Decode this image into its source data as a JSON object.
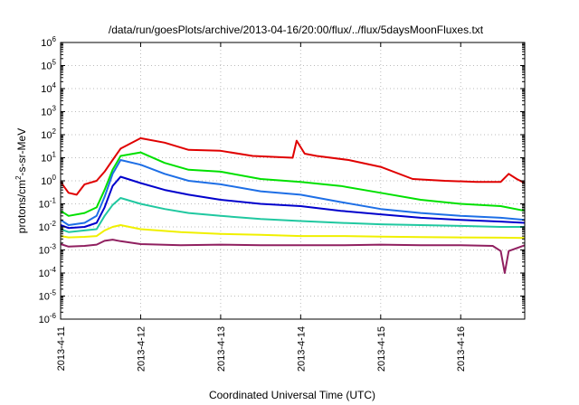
{
  "chart_data": {
    "type": "line",
    "title": "/data/run/goesPlots/archive/2013-04-16/20:00/flux/../flux/5daysMoonFluxes.txt",
    "xlabel": "Coordinated Universal Time (UTC)",
    "ylabel": {
      "prefix": "protons/cm",
      "sup": "2",
      "suffix": "-s-sr-MeV"
    },
    "y_scale": "log",
    "ylim": [
      1e-06,
      1000000.0
    ],
    "y_ticks": [
      {
        "base": "10",
        "exp": "6"
      },
      {
        "base": "10",
        "exp": "5"
      },
      {
        "base": "10",
        "exp": "4"
      },
      {
        "base": "10",
        "exp": "3"
      },
      {
        "base": "10",
        "exp": "2"
      },
      {
        "base": "10",
        "exp": "1"
      },
      {
        "base": "10",
        "exp": "0"
      },
      {
        "base": "10",
        "exp": "-1"
      },
      {
        "base": "10",
        "exp": "-2"
      },
      {
        "base": "10",
        "exp": "-3"
      },
      {
        "base": "10",
        "exp": "-4"
      },
      {
        "base": "10",
        "exp": "-5"
      },
      {
        "base": "10",
        "exp": "-6"
      }
    ],
    "x_start": "2013-04-11",
    "xlim_days": [
      0,
      5.8
    ],
    "x_ticks": [
      "2013-4-11",
      "2013-4-12",
      "2013-4-13",
      "2013-4-14",
      "2013-4-15",
      "2013-4-16"
    ],
    "grid": true,
    "series": [
      {
        "color": "#e00000",
        "x": [
          0.0,
          0.1,
          0.2,
          0.3,
          0.45,
          0.55,
          0.65,
          0.75,
          1.0,
          1.3,
          1.6,
          2.0,
          2.4,
          2.9,
          2.95,
          3.05,
          3.2,
          3.6,
          4.0,
          4.4,
          4.8,
          5.2,
          5.5,
          5.6,
          5.7,
          5.8
        ],
        "y": [
          0.9,
          0.3,
          0.25,
          0.7,
          1.0,
          2.5,
          8,
          25,
          70,
          45,
          22,
          20,
          12,
          10,
          55,
          15,
          12,
          8,
          4,
          1.2,
          1.0,
          0.9,
          0.9,
          2.0,
          1.2,
          0.8
        ]
      },
      {
        "color": "#00e000",
        "x": [
          0.0,
          0.1,
          0.3,
          0.45,
          0.55,
          0.65,
          0.75,
          1.0,
          1.3,
          1.6,
          2.0,
          2.5,
          3.0,
          3.5,
          4.0,
          4.5,
          5.0,
          5.5,
          5.8
        ],
        "y": [
          0.05,
          0.03,
          0.04,
          0.07,
          0.4,
          3,
          12,
          17,
          6,
          3,
          2.5,
          1.2,
          0.9,
          0.6,
          0.3,
          0.15,
          0.1,
          0.08,
          0.05
        ]
      },
      {
        "color": "#1e6fe6",
        "x": [
          0.0,
          0.1,
          0.3,
          0.45,
          0.55,
          0.65,
          0.75,
          1.0,
          1.3,
          1.6,
          2.0,
          2.5,
          3.0,
          3.5,
          4.0,
          4.5,
          5.0,
          5.5,
          5.8
        ],
        "y": [
          0.02,
          0.012,
          0.015,
          0.03,
          0.2,
          2,
          8,
          5,
          2,
          1,
          0.7,
          0.35,
          0.25,
          0.12,
          0.06,
          0.04,
          0.03,
          0.025,
          0.02
        ]
      },
      {
        "color": "#0000cc",
        "x": [
          0.0,
          0.1,
          0.3,
          0.45,
          0.55,
          0.65,
          0.75,
          1.0,
          1.3,
          1.6,
          2.0,
          2.5,
          3.0,
          3.5,
          4.0,
          4.5,
          5.0,
          5.5,
          5.8
        ],
        "y": [
          0.012,
          0.009,
          0.01,
          0.015,
          0.07,
          0.6,
          1.5,
          0.8,
          0.4,
          0.25,
          0.15,
          0.1,
          0.08,
          0.05,
          0.035,
          0.025,
          0.02,
          0.017,
          0.015
        ]
      },
      {
        "color": "#20c8a0",
        "x": [
          0.0,
          0.1,
          0.3,
          0.45,
          0.55,
          0.65,
          0.75,
          1.0,
          1.3,
          1.6,
          2.0,
          2.5,
          3.0,
          3.5,
          4.0,
          4.5,
          5.0,
          5.5,
          5.8
        ],
        "y": [
          0.008,
          0.006,
          0.007,
          0.008,
          0.03,
          0.09,
          0.18,
          0.1,
          0.06,
          0.04,
          0.03,
          0.022,
          0.018,
          0.015,
          0.013,
          0.012,
          0.011,
          0.01,
          0.01
        ]
      },
      {
        "color": "#f0f000",
        "x": [
          0.0,
          0.1,
          0.3,
          0.45,
          0.55,
          0.65,
          0.75,
          1.0,
          1.5,
          2.0,
          2.5,
          3.0,
          3.5,
          4.0,
          4.5,
          5.0,
          5.5,
          5.8
        ],
        "y": [
          0.004,
          0.0035,
          0.0037,
          0.004,
          0.007,
          0.01,
          0.012,
          0.008,
          0.006,
          0.005,
          0.0045,
          0.004,
          0.004,
          0.0038,
          0.0036,
          0.0035,
          0.0034,
          0.0033
        ]
      },
      {
        "color": "#902060",
        "x": [
          0.0,
          0.1,
          0.3,
          0.45,
          0.55,
          0.65,
          0.75,
          1.0,
          1.5,
          2.0,
          2.5,
          3.0,
          3.5,
          4.0,
          4.5,
          5.0,
          5.4,
          5.5,
          5.55,
          5.6,
          5.8
        ],
        "y": [
          0.0018,
          0.0014,
          0.0015,
          0.0017,
          0.0025,
          0.0028,
          0.0024,
          0.0018,
          0.0016,
          0.0017,
          0.0016,
          0.0016,
          0.0016,
          0.0017,
          0.0016,
          0.0016,
          0.0015,
          0.0009,
          0.0001,
          0.0009,
          0.0016
        ]
      }
    ]
  }
}
